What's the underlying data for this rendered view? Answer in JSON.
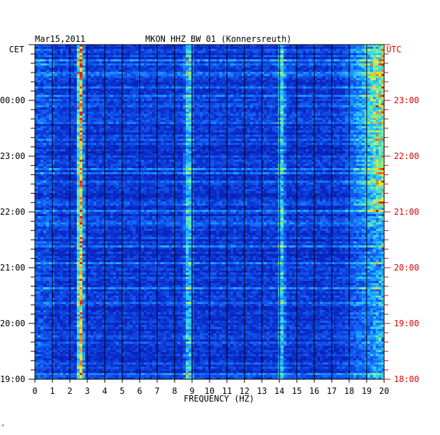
{
  "colors": {
    "background": "#ffffff",
    "plot_base": "#0a1f9a",
    "left_text": "#000000",
    "right_text": "#e00000",
    "grid": "#000000",
    "hot_line": "#ffcc00"
  },
  "chart_data": {
    "type": "heatmap",
    "date": "Mar15,2011",
    "title": "MKON HHZ BW 01 (Konnersreuth)",
    "xlabel": "FREQUENCY (HZ)",
    "left_axis_name": "CET",
    "right_axis_name": "UTC",
    "xlim": [
      0,
      20
    ],
    "x_ticks": [
      "0",
      "1",
      "2",
      "3",
      "4",
      "5",
      "6",
      "7",
      "8",
      "9",
      "10",
      "11",
      "12",
      "13",
      "14",
      "15",
      "16",
      "17",
      "18",
      "19",
      "20"
    ],
    "left_time_labels": [
      "00:00",
      "23:00",
      "22:00",
      "21:00",
      "20:00",
      "19:00"
    ],
    "right_time_labels": [
      "23:00",
      "22:00",
      "21:00",
      "20:00",
      "19:00",
      "18:00"
    ],
    "time_range_utc": [
      "18:00",
      "24:00"
    ],
    "grid": true,
    "colormap": "blue-cyan-yellow-red",
    "features": [
      {
        "kind": "persistent_line",
        "freq_hz": 2.6,
        "intensity": "high"
      },
      {
        "kind": "persistent_line",
        "freq_hz": 8.8,
        "intensity": "medium"
      },
      {
        "kind": "persistent_line",
        "freq_hz": 14.1,
        "intensity": "medium"
      },
      {
        "kind": "broadband_noise",
        "freq_range_hz": [
          17.5,
          20
        ],
        "intensity": "high"
      }
    ]
  }
}
